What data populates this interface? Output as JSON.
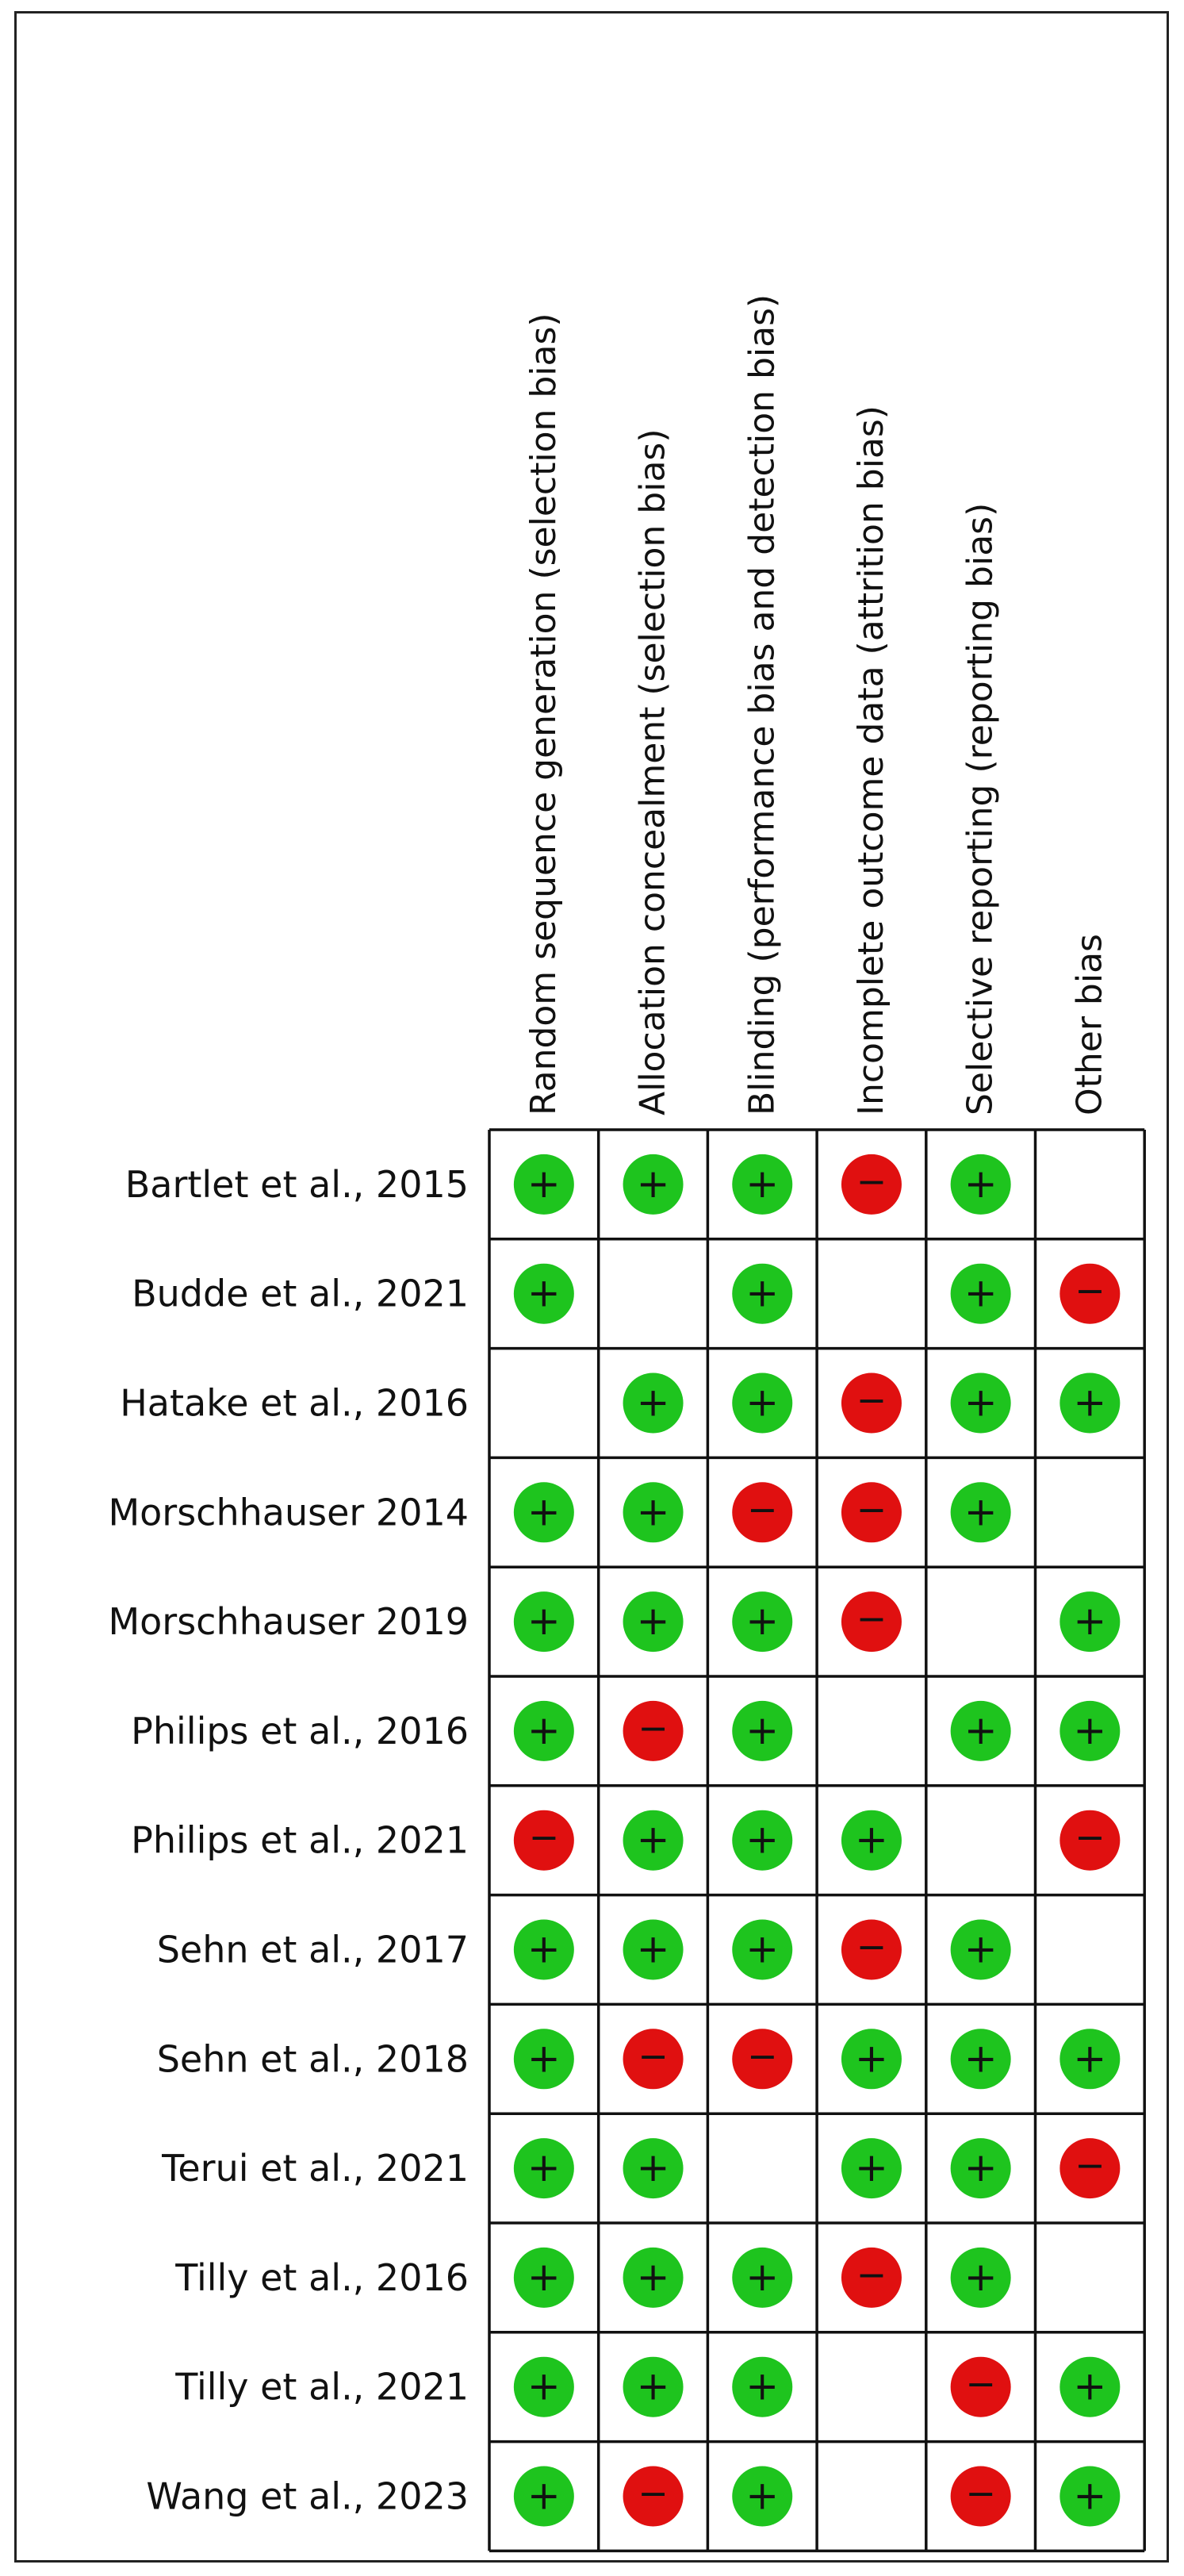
{
  "figure": {
    "domains": [
      "Random sequence generation (selection bias)",
      "Allocation concealment (selection bias)",
      "Blinding (performance bias and detection bias)",
      "Incomplete outcome data (attrition bias)",
      "Selective reporting (reporting bias)",
      "Other bias"
    ],
    "studies": [
      {
        "name": "Bartlet et al., 2015",
        "ratings": [
          "low",
          "low",
          "low",
          "high",
          "low",
          "unclear"
        ]
      },
      {
        "name": "Budde et al., 2021",
        "ratings": [
          "low",
          "unclear",
          "low",
          "unclear",
          "low",
          "high"
        ]
      },
      {
        "name": "Hatake et al., 2016",
        "ratings": [
          "unclear",
          "low",
          "low",
          "high",
          "low",
          "low"
        ]
      },
      {
        "name": "Morschhauser 2014",
        "ratings": [
          "low",
          "low",
          "high",
          "high",
          "low",
          "unclear"
        ]
      },
      {
        "name": "Morschhauser 2019",
        "ratings": [
          "low",
          "low",
          "low",
          "high",
          "unclear",
          "low"
        ]
      },
      {
        "name": "Philips et al., 2016",
        "ratings": [
          "low",
          "high",
          "low",
          "unclear",
          "low",
          "low"
        ]
      },
      {
        "name": "Philips et al., 2021",
        "ratings": [
          "high",
          "low",
          "low",
          "low",
          "unclear",
          "high"
        ]
      },
      {
        "name": "Sehn et al., 2017",
        "ratings": [
          "low",
          "low",
          "low",
          "high",
          "low",
          "unclear"
        ]
      },
      {
        "name": "Sehn et al., 2018",
        "ratings": [
          "low",
          "high",
          "high",
          "low",
          "low",
          "low"
        ]
      },
      {
        "name": "Terui et al., 2021",
        "ratings": [
          "low",
          "low",
          "unclear",
          "low",
          "low",
          "high"
        ]
      },
      {
        "name": "Tilly et al., 2016",
        "ratings": [
          "low",
          "low",
          "low",
          "high",
          "low",
          "unclear"
        ]
      },
      {
        "name": "Tilly et al., 2021",
        "ratings": [
          "low",
          "low",
          "low",
          "unclear",
          "high",
          "low"
        ]
      },
      {
        "name": "Wang et al., 2023",
        "ratings": [
          "low",
          "high",
          "low",
          "unclear",
          "high",
          "low"
        ]
      }
    ],
    "symbols": {
      "low": "+",
      "high": "−"
    },
    "colors": {
      "low": "#1ec41e",
      "high": "#e01010",
      "grid": "#111111",
      "text": "#111111",
      "border": "#222222"
    }
  }
}
